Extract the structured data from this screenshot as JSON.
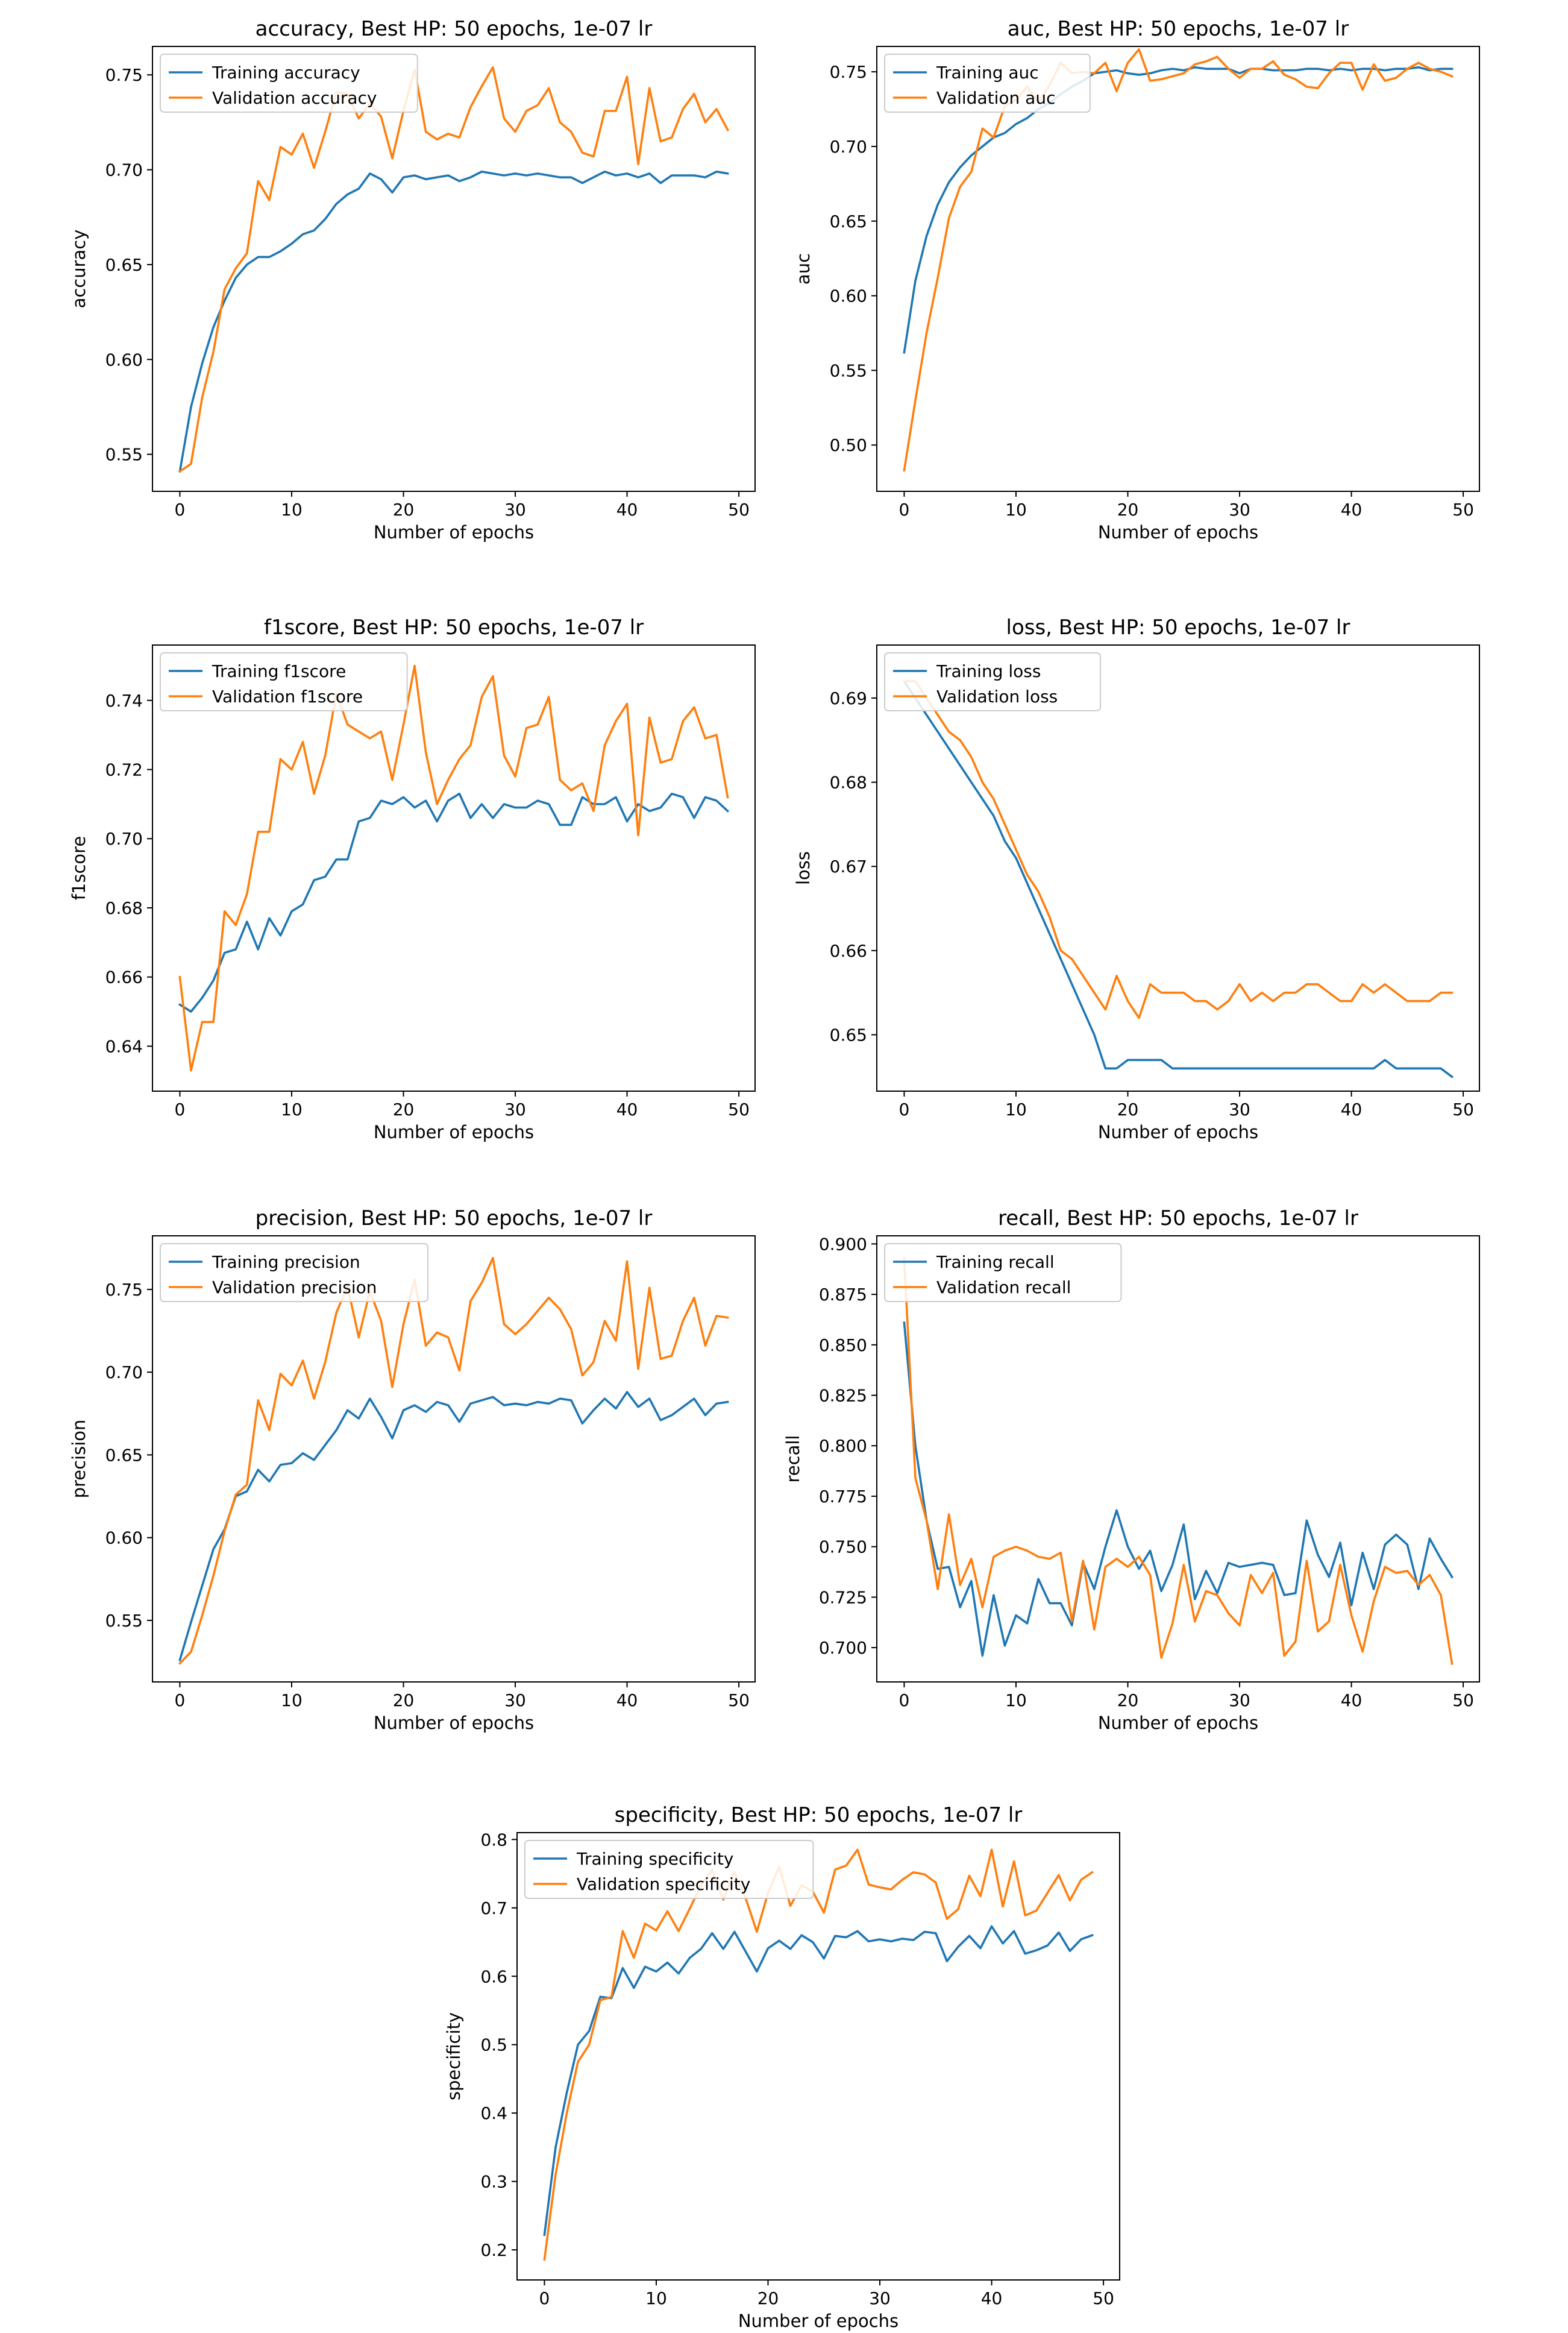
{
  "colors": {
    "training": "#1f77b4",
    "validation": "#ff7f0e",
    "axes": "#000000",
    "background": "#ffffff",
    "legend_edge": "#cccccc"
  },
  "chart_data": [
    {
      "id": "accuracy",
      "type": "line",
      "title": "accuracy, Best HP: 50 epochs, 1e-07 lr",
      "xlabel": "Number of epochs",
      "ylabel": "accuracy",
      "xlim": [
        -2.45,
        51.45
      ],
      "ylim": [
        0.5305,
        0.765
      ],
      "xticks": [
        0,
        10,
        20,
        30,
        40,
        50
      ],
      "yticks": [
        0.55,
        0.6,
        0.65,
        0.7,
        0.75
      ],
      "ytick_labels": [
        "0.55",
        "0.60",
        "0.65",
        "0.70",
        "0.75"
      ],
      "legend_position": "upper-left",
      "series": [
        {
          "name": "Training accuracy",
          "color": "#1f77b4",
          "values": [
            0.541,
            0.575,
            0.598,
            0.617,
            0.631,
            0.643,
            0.65,
            0.654,
            0.654,
            0.657,
            0.661,
            0.666,
            0.668,
            0.674,
            0.682,
            0.687,
            0.69,
            0.698,
            0.695,
            0.688,
            0.696,
            0.697,
            0.695,
            0.696,
            0.697,
            0.694,
            0.696,
            0.699,
            0.698,
            0.697,
            0.698,
            0.697,
            0.698,
            0.697,
            0.696,
            0.696,
            0.693,
            0.696,
            0.699,
            0.697,
            0.698,
            0.696,
            0.698,
            0.693,
            0.697,
            0.697,
            0.697,
            0.696,
            0.699,
            0.698
          ]
        },
        {
          "name": "Validation accuracy",
          "color": "#ff7f0e",
          "values": [
            0.541,
            0.545,
            0.58,
            0.604,
            0.637,
            0.648,
            0.656,
            0.694,
            0.684,
            0.712,
            0.708,
            0.719,
            0.701,
            0.72,
            0.741,
            0.74,
            0.727,
            0.735,
            0.728,
            0.706,
            0.731,
            0.753,
            0.72,
            0.716,
            0.719,
            0.717,
            0.733,
            0.744,
            0.754,
            0.727,
            0.72,
            0.731,
            0.734,
            0.743,
            0.725,
            0.72,
            0.709,
            0.707,
            0.731,
            0.731,
            0.749,
            0.703,
            0.743,
            0.715,
            0.717,
            0.732,
            0.74,
            0.725,
            0.732,
            0.721
          ]
        }
      ]
    },
    {
      "id": "auc",
      "type": "line",
      "title": "auc, Best HP: 50 epochs, 1e-07 lr",
      "xlabel": "Number of epochs",
      "ylabel": "auc",
      "xlim": [
        -2.45,
        51.45
      ],
      "ylim": [
        0.469,
        0.767
      ],
      "xticks": [
        0,
        10,
        20,
        30,
        40,
        50
      ],
      "yticks": [
        0.5,
        0.55,
        0.6,
        0.65,
        0.7,
        0.75
      ],
      "ytick_labels": [
        "0.50",
        "0.55",
        "0.60",
        "0.65",
        "0.70",
        "0.75"
      ],
      "legend_position": "upper-left",
      "series": [
        {
          "name": "Training auc",
          "color": "#1f77b4",
          "values": [
            0.562,
            0.61,
            0.64,
            0.661,
            0.676,
            0.686,
            0.694,
            0.7,
            0.706,
            0.709,
            0.715,
            0.719,
            0.725,
            0.729,
            0.735,
            0.74,
            0.744,
            0.749,
            0.75,
            0.751,
            0.749,
            0.748,
            0.749,
            0.751,
            0.752,
            0.751,
            0.753,
            0.752,
            0.752,
            0.752,
            0.749,
            0.752,
            0.752,
            0.751,
            0.751,
            0.751,
            0.752,
            0.752,
            0.751,
            0.752,
            0.751,
            0.752,
            0.752,
            0.751,
            0.752,
            0.752,
            0.753,
            0.751,
            0.752,
            0.752
          ]
        },
        {
          "name": "Validation auc",
          "color": "#ff7f0e",
          "values": [
            0.483,
            0.53,
            0.575,
            0.612,
            0.652,
            0.673,
            0.683,
            0.712,
            0.706,
            0.727,
            0.731,
            0.74,
            0.73,
            0.741,
            0.756,
            0.749,
            0.75,
            0.749,
            0.756,
            0.737,
            0.756,
            0.765,
            0.744,
            0.745,
            0.747,
            0.749,
            0.755,
            0.757,
            0.76,
            0.752,
            0.746,
            0.752,
            0.752,
            0.757,
            0.748,
            0.745,
            0.74,
            0.739,
            0.749,
            0.756,
            0.756,
            0.738,
            0.755,
            0.744,
            0.746,
            0.752,
            0.756,
            0.752,
            0.75,
            0.747
          ]
        }
      ]
    },
    {
      "id": "f1score",
      "type": "line",
      "title": "f1score, Best HP: 50 epochs, 1e-07 lr",
      "xlabel": "Number of epochs",
      "ylabel": "f1score",
      "xlim": [
        -2.45,
        51.45
      ],
      "ylim": [
        0.627,
        0.756
      ],
      "xticks": [
        0,
        10,
        20,
        30,
        40,
        50
      ],
      "yticks": [
        0.64,
        0.66,
        0.68,
        0.7,
        0.72,
        0.74
      ],
      "ytick_labels": [
        "0.64",
        "0.66",
        "0.68",
        "0.70",
        "0.72",
        "0.74"
      ],
      "legend_position": "upper-left",
      "series": [
        {
          "name": "Training f1score",
          "color": "#1f77b4",
          "values": [
            0.652,
            0.65,
            0.654,
            0.659,
            0.667,
            0.668,
            0.676,
            0.668,
            0.677,
            0.672,
            0.679,
            0.681,
            0.688,
            0.689,
            0.694,
            0.694,
            0.705,
            0.706,
            0.711,
            0.71,
            0.712,
            0.709,
            0.711,
            0.705,
            0.711,
            0.713,
            0.706,
            0.71,
            0.706,
            0.71,
            0.709,
            0.709,
            0.711,
            0.71,
            0.704,
            0.704,
            0.712,
            0.71,
            0.71,
            0.712,
            0.705,
            0.71,
            0.708,
            0.709,
            0.713,
            0.712,
            0.706,
            0.712,
            0.711,
            0.708
          ]
        },
        {
          "name": "Validation f1score",
          "color": "#ff7f0e",
          "values": [
            0.66,
            0.633,
            0.647,
            0.647,
            0.679,
            0.675,
            0.684,
            0.702,
            0.702,
            0.723,
            0.72,
            0.728,
            0.713,
            0.724,
            0.742,
            0.733,
            0.731,
            0.729,
            0.731,
            0.717,
            0.733,
            0.75,
            0.725,
            0.71,
            0.717,
            0.723,
            0.727,
            0.741,
            0.747,
            0.724,
            0.718,
            0.732,
            0.733,
            0.741,
            0.717,
            0.714,
            0.716,
            0.708,
            0.727,
            0.734,
            0.739,
            0.701,
            0.735,
            0.722,
            0.723,
            0.734,
            0.738,
            0.729,
            0.73,
            0.712
          ]
        }
      ]
    },
    {
      "id": "loss",
      "type": "line",
      "title": "loss, Best HP: 50 epochs, 1e-07 lr",
      "xlabel": "Number of epochs",
      "ylabel": "loss",
      "xlim": [
        -2.45,
        51.45
      ],
      "ylim": [
        0.6433,
        0.6963
      ],
      "xticks": [
        0,
        10,
        20,
        30,
        40,
        50
      ],
      "yticks": [
        0.65,
        0.66,
        0.67,
        0.68,
        0.69
      ],
      "ytick_labels": [
        "0.65",
        "0.66",
        "0.67",
        "0.68",
        "0.69"
      ],
      "legend_position": "upper-left",
      "series": [
        {
          "name": "Training loss",
          "color": "#1f77b4",
          "values": [
            0.692,
            0.69,
            0.688,
            0.686,
            0.684,
            0.682,
            0.68,
            0.678,
            0.676,
            0.673,
            0.671,
            0.668,
            0.665,
            0.662,
            0.659,
            0.656,
            0.653,
            0.65,
            0.646,
            0.646,
            0.647,
            0.647,
            0.647,
            0.647,
            0.646,
            0.646,
            0.646,
            0.646,
            0.646,
            0.646,
            0.646,
            0.646,
            0.646,
            0.646,
            0.646,
            0.646,
            0.646,
            0.646,
            0.646,
            0.646,
            0.646,
            0.646,
            0.646,
            0.647,
            0.646,
            0.646,
            0.646,
            0.646,
            0.646,
            0.645
          ]
        },
        {
          "name": "Validation loss",
          "color": "#ff7f0e",
          "values": [
            0.692,
            0.692,
            0.69,
            0.688,
            0.686,
            0.685,
            0.683,
            0.68,
            0.678,
            0.675,
            0.672,
            0.669,
            0.667,
            0.664,
            0.66,
            0.659,
            0.657,
            0.655,
            0.653,
            0.657,
            0.654,
            0.652,
            0.656,
            0.655,
            0.655,
            0.655,
            0.654,
            0.654,
            0.653,
            0.654,
            0.656,
            0.654,
            0.655,
            0.654,
            0.655,
            0.655,
            0.656,
            0.656,
            0.655,
            0.654,
            0.654,
            0.656,
            0.655,
            0.656,
            0.655,
            0.654,
            0.654,
            0.654,
            0.655,
            0.655
          ]
        }
      ]
    },
    {
      "id": "precision",
      "type": "line",
      "title": "precision, Best HP: 50 epochs, 1e-07 lr",
      "xlabel": "Number of epochs",
      "ylabel": "precision",
      "xlim": [
        -2.45,
        51.45
      ],
      "ylim": [
        0.5128,
        0.7824
      ],
      "xticks": [
        0,
        10,
        20,
        30,
        40,
        50
      ],
      "yticks": [
        0.55,
        0.6,
        0.65,
        0.7,
        0.75
      ],
      "ytick_labels": [
        "0.55",
        "0.60",
        "0.65",
        "0.70",
        "0.75"
      ],
      "legend_position": "upper-left",
      "series": [
        {
          "name": "Training precision",
          "color": "#1f77b4",
          "values": [
            0.526,
            0.549,
            0.571,
            0.593,
            0.605,
            0.625,
            0.628,
            0.641,
            0.634,
            0.644,
            0.645,
            0.651,
            0.647,
            0.656,
            0.665,
            0.677,
            0.672,
            0.684,
            0.673,
            0.66,
            0.677,
            0.68,
            0.676,
            0.682,
            0.68,
            0.67,
            0.681,
            0.683,
            0.685,
            0.68,
            0.681,
            0.68,
            0.682,
            0.681,
            0.684,
            0.683,
            0.669,
            0.677,
            0.684,
            0.678,
            0.688,
            0.679,
            0.684,
            0.671,
            0.674,
            0.679,
            0.684,
            0.674,
            0.681,
            0.682
          ]
        },
        {
          "name": "Validation precision",
          "color": "#ff7f0e",
          "values": [
            0.524,
            0.531,
            0.553,
            0.577,
            0.604,
            0.626,
            0.632,
            0.683,
            0.665,
            0.699,
            0.692,
            0.707,
            0.684,
            0.706,
            0.736,
            0.752,
            0.721,
            0.749,
            0.731,
            0.691,
            0.729,
            0.756,
            0.716,
            0.724,
            0.721,
            0.701,
            0.743,
            0.754,
            0.769,
            0.729,
            0.723,
            0.729,
            0.737,
            0.745,
            0.738,
            0.726,
            0.698,
            0.706,
            0.731,
            0.719,
            0.767,
            0.702,
            0.751,
            0.708,
            0.71,
            0.731,
            0.745,
            0.716,
            0.734,
            0.733
          ]
        }
      ]
    },
    {
      "id": "recall",
      "type": "line",
      "title": "recall, Best HP: 50 epochs, 1e-07 lr",
      "xlabel": "Number of epochs",
      "ylabel": "recall",
      "xlim": [
        -2.45,
        51.45
      ],
      "ylim": [
        0.683,
        0.904
      ],
      "xticks": [
        0,
        10,
        20,
        30,
        40,
        50
      ],
      "yticks": [
        0.7,
        0.725,
        0.75,
        0.775,
        0.8,
        0.825,
        0.85,
        0.875,
        0.9
      ],
      "ytick_labels": [
        "0.700",
        "0.725",
        "0.750",
        "0.775",
        "0.800",
        "0.825",
        "0.850",
        "0.875",
        "0.900"
      ],
      "legend_position": "upper-left",
      "series": [
        {
          "name": "Training recall",
          "color": "#1f77b4",
          "values": [
            0.861,
            0.8,
            0.763,
            0.739,
            0.74,
            0.72,
            0.733,
            0.696,
            0.726,
            0.701,
            0.716,
            0.712,
            0.734,
            0.722,
            0.722,
            0.711,
            0.742,
            0.729,
            0.75,
            0.768,
            0.75,
            0.739,
            0.748,
            0.728,
            0.741,
            0.761,
            0.724,
            0.738,
            0.727,
            0.742,
            0.74,
            0.741,
            0.742,
            0.741,
            0.726,
            0.727,
            0.763,
            0.746,
            0.735,
            0.752,
            0.721,
            0.747,
            0.729,
            0.751,
            0.756,
            0.751,
            0.729,
            0.754,
            0.744,
            0.735
          ]
        },
        {
          "name": "Validation recall",
          "color": "#ff7f0e",
          "values": [
            0.893,
            0.784,
            0.763,
            0.729,
            0.766,
            0.731,
            0.744,
            0.72,
            0.745,
            0.748,
            0.75,
            0.748,
            0.745,
            0.744,
            0.747,
            0.713,
            0.743,
            0.709,
            0.74,
            0.744,
            0.74,
            0.745,
            0.736,
            0.695,
            0.712,
            0.741,
            0.713,
            0.728,
            0.726,
            0.717,
            0.711,
            0.736,
            0.727,
            0.737,
            0.696,
            0.703,
            0.743,
            0.708,
            0.713,
            0.741,
            0.716,
            0.698,
            0.723,
            0.74,
            0.737,
            0.738,
            0.731,
            0.736,
            0.726,
            0.692
          ]
        }
      ]
    },
    {
      "id": "specificity",
      "type": "line",
      "title": "specificity, Best HP: 50 epochs, 1e-07 lr",
      "xlabel": "Number of epochs",
      "ylabel": "specificity",
      "xlim": [
        -2.45,
        51.45
      ],
      "ylim": [
        0.156,
        0.81
      ],
      "xticks": [
        0,
        10,
        20,
        30,
        40,
        50
      ],
      "yticks": [
        0.2,
        0.3,
        0.4,
        0.5,
        0.6,
        0.7,
        0.8
      ],
      "ytick_labels": [
        "0.2",
        "0.3",
        "0.4",
        "0.5",
        "0.6",
        "0.7",
        "0.8"
      ],
      "legend_position": "upper-left",
      "series": [
        {
          "name": "Training specificity",
          "color": "#1f77b4",
          "values": [
            0.222,
            0.35,
            0.43,
            0.5,
            0.52,
            0.57,
            0.568,
            0.612,
            0.583,
            0.614,
            0.607,
            0.62,
            0.604,
            0.627,
            0.64,
            0.663,
            0.64,
            0.665,
            0.636,
            0.607,
            0.641,
            0.652,
            0.64,
            0.66,
            0.65,
            0.626,
            0.659,
            0.657,
            0.666,
            0.651,
            0.654,
            0.651,
            0.655,
            0.653,
            0.665,
            0.663,
            0.622,
            0.643,
            0.659,
            0.641,
            0.673,
            0.648,
            0.666,
            0.633,
            0.638,
            0.645,
            0.664,
            0.637,
            0.654,
            0.66
          ]
        },
        {
          "name": "Validation specificity",
          "color": "#ff7f0e",
          "values": [
            0.186,
            0.31,
            0.4,
            0.475,
            0.5,
            0.565,
            0.57,
            0.666,
            0.627,
            0.677,
            0.667,
            0.695,
            0.666,
            0.699,
            0.733,
            0.756,
            0.712,
            0.752,
            0.714,
            0.665,
            0.722,
            0.76,
            0.703,
            0.733,
            0.724,
            0.693,
            0.756,
            0.762,
            0.785,
            0.734,
            0.73,
            0.727,
            0.741,
            0.752,
            0.749,
            0.737,
            0.684,
            0.698,
            0.747,
            0.717,
            0.785,
            0.702,
            0.768,
            0.689,
            0.696,
            0.722,
            0.748,
            0.711,
            0.741,
            0.752
          ]
        }
      ]
    }
  ]
}
